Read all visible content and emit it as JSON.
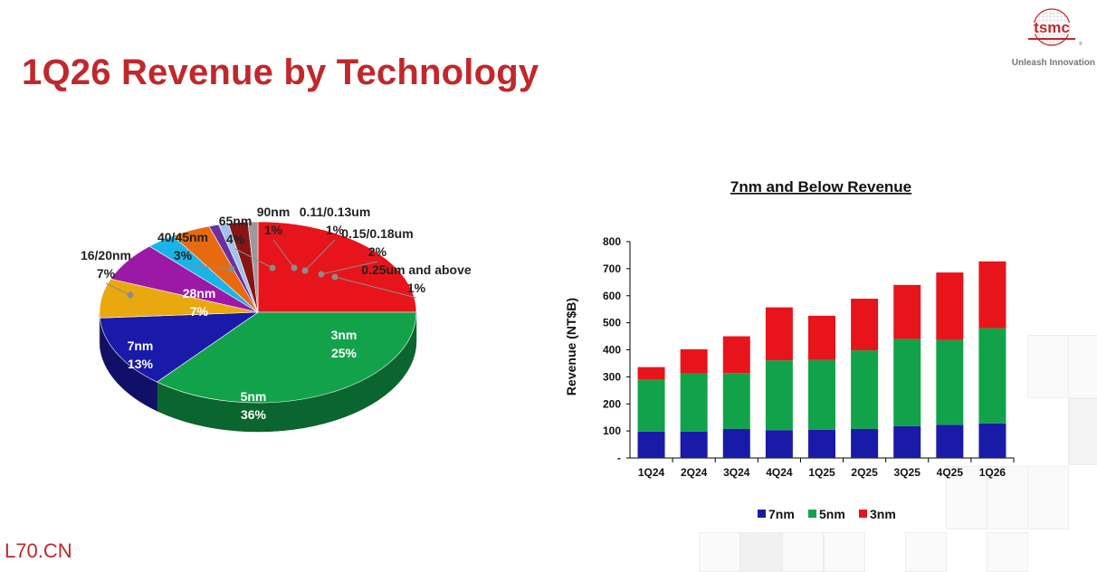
{
  "header": {
    "title": "1Q26 Revenue by Technology",
    "logo_text": "tsmc",
    "tagline": "Unleash Innovation"
  },
  "watermark": "L70.CN",
  "colors": {
    "title_red": "#c0282b",
    "n3": "#e8141b",
    "n5": "#12a34a",
    "n7": "#1a1aa8"
  },
  "chart_data": [
    {
      "type": "pie",
      "slices": [
        {
          "label": "3nm",
          "value": 25,
          "value_label": "25%",
          "color": "#e8141b"
        },
        {
          "label": "5nm",
          "value": 36,
          "value_label": "36%",
          "color": "#12a34a"
        },
        {
          "label": "7nm",
          "value": 13,
          "value_label": "13%",
          "color": "#1a1aa8"
        },
        {
          "label": "16/20nm",
          "value": 7,
          "value_label": "7%",
          "color": "#e8a80e"
        },
        {
          "label": "28nm",
          "value": 7,
          "value_label": "7%",
          "color": "#9c19a6"
        },
        {
          "label": "40/45nm",
          "value": 3,
          "value_label": "3%",
          "color": "#18b4e8"
        },
        {
          "label": "65nm",
          "value": 4,
          "value_label": "4%",
          "color": "#e86a10"
        },
        {
          "label": "90nm",
          "value": 1,
          "value_label": "1%",
          "color": "#6b2fa0"
        },
        {
          "label": "0.11/0.13um",
          "value": 1,
          "value_label": "1%",
          "color": "#9fc3ea"
        },
        {
          "label": "0.15/0.18um",
          "value": 2,
          "value_label": "2%",
          "color": "#8a1414"
        },
        {
          "label": "0.25um and above",
          "value": 1,
          "value_label": "1%",
          "color": "#9a9a9a"
        }
      ]
    },
    {
      "type": "bar",
      "stacked": true,
      "title": "7nm and Below Revenue",
      "ylabel": "Revenue (NT$B)",
      "xlabel": "",
      "categories": [
        "1Q24",
        "2Q24",
        "3Q24",
        "4Q24",
        "1Q25",
        "2Q25",
        "3Q25",
        "4Q25",
        "1Q26"
      ],
      "ylim": [
        0,
        800
      ],
      "y_ticks": [
        "-",
        "100",
        "200",
        "300",
        "400",
        "500",
        "600",
        "700",
        "800"
      ],
      "series": [
        {
          "name": "7nm",
          "color": "#1a1aa8",
          "values": [
            98,
            98,
            108,
            103,
            104,
            108,
            118,
            123,
            128
          ]
        },
        {
          "name": "5nm",
          "color": "#12a34a",
          "values": [
            192,
            214,
            206,
            258,
            258,
            290,
            322,
            313,
            352
          ]
        },
        {
          "name": "3nm",
          "color": "#e8141b",
          "values": [
            46,
            90,
            136,
            196,
            164,
            191,
            200,
            250,
            247
          ]
        }
      ],
      "legend": "bottom"
    }
  ]
}
